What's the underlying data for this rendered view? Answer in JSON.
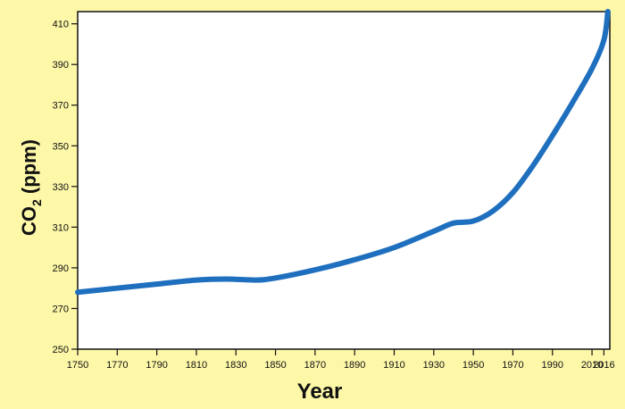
{
  "colors": {
    "background": "#fdf7a8",
    "plot_area": "#ffffff",
    "line": "#1f6fbf",
    "axis": "#111111"
  },
  "chart_data": {
    "type": "line",
    "title": "",
    "xlabel": "Year",
    "ylabel_main": "CO",
    "ylabel_sub": "2",
    "ylabel_unit": " (ppm)",
    "xlim": [
      1750,
      2019
    ],
    "ylim": [
      250,
      416
    ],
    "x_ticks": [
      1750,
      1770,
      1790,
      1810,
      1830,
      1850,
      1870,
      1890,
      1910,
      1930,
      1950,
      1970,
      1990,
      2010,
      2016
    ],
    "x_tick_labels": [
      "1750",
      "1770",
      "1790",
      "1810",
      "1830",
      "1850",
      "1870",
      "1890",
      "1910",
      "1930",
      "1950",
      "1970",
      "1990",
      "2010",
      "2016"
    ],
    "y_ticks": [
      250,
      270,
      290,
      310,
      330,
      350,
      370,
      390,
      410
    ],
    "grid": false,
    "legend": "none",
    "series": [
      {
        "x": [
          1750,
          1770,
          1790,
          1810,
          1825,
          1840,
          1850,
          1870,
          1890,
          1910,
          1930,
          1940,
          1950,
          1960,
          1970,
          1980,
          1990,
          2000,
          2010,
          2016,
          2018
        ],
        "y": [
          278,
          280,
          282,
          284,
          284.5,
          284,
          285,
          289,
          294,
          300,
          308,
          312,
          313,
          318,
          327,
          340,
          355,
          371,
          388,
          402,
          416
        ]
      }
    ]
  }
}
